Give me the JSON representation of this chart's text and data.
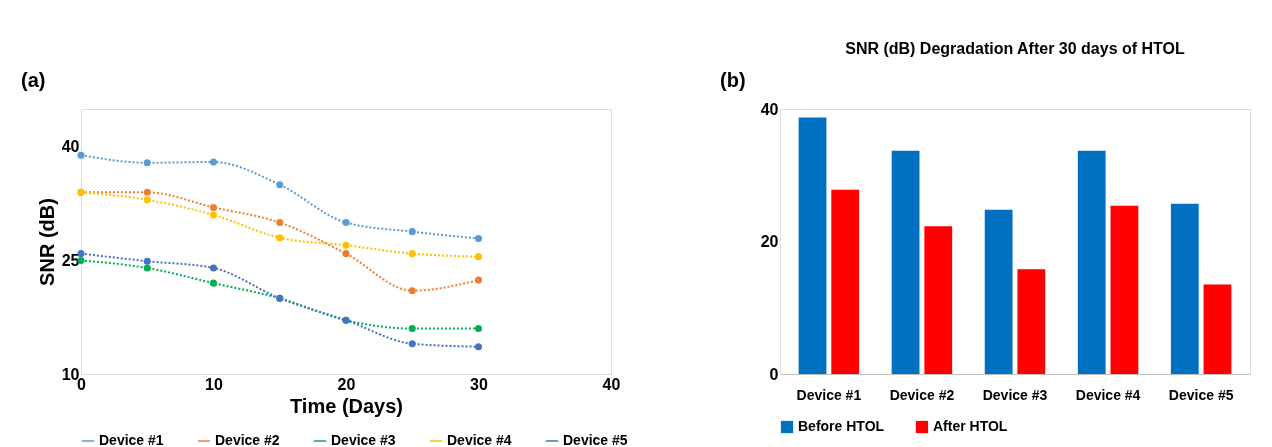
{
  "chart_data": [
    {
      "type": "line",
      "annotations": [
        "(a)"
      ],
      "xlabel": "Time (Days)",
      "ylabel": "SNR (dB)",
      "x": [
        0,
        5,
        10,
        15,
        20,
        25,
        30
      ],
      "xlim": [
        0,
        40
      ],
      "xticks": [
        0,
        10,
        20,
        30,
        40
      ],
      "ylim": [
        10,
        45
      ],
      "yticks": [
        10,
        25,
        40
      ],
      "grid": false,
      "legend": "bottom",
      "marker": "circle",
      "line_style": "dotted",
      "series": [
        {
          "name": "Device #1",
          "color": "#5b9bd5",
          "values": [
            38.9,
            37.9,
            38,
            35,
            30,
            28.8,
            27.9
          ]
        },
        {
          "name": "Device #2",
          "color": "#ed7d31",
          "values": [
            34,
            34,
            32,
            30,
            25.9,
            21,
            22.4
          ]
        },
        {
          "name": "Device #3",
          "color": "#00b050",
          "values": [
            25,
            24,
            22,
            20,
            17.1,
            16,
            16
          ]
        },
        {
          "name": "Device #4",
          "color": "#ffc000",
          "values": [
            34,
            33,
            31,
            28,
            27,
            25.9,
            25.5
          ]
        },
        {
          "name": "Device #5",
          "color": "#4472c4",
          "values": [
            25.9,
            24.9,
            24,
            20,
            17.1,
            14,
            13.6
          ]
        }
      ]
    },
    {
      "type": "bar",
      "title": "SNR (dB) Degradation After 30 days of HTOL",
      "annotations": [
        "(b)"
      ],
      "categories": [
        "Device #1",
        "Device #2",
        "Device #3",
        "Device #4",
        "Device #5"
      ],
      "ylim": [
        0,
        40
      ],
      "yticks": [
        0,
        20,
        40
      ],
      "grid": false,
      "legend": "bottom",
      "series": [
        {
          "name": "Before HTOL",
          "color": "#0070c0",
          "values": [
            38.7,
            33.7,
            24.8,
            33.7,
            25.7
          ]
        },
        {
          "name": "After HTOL",
          "color": "#ff0000",
          "values": [
            27.8,
            22.3,
            15.8,
            25.4,
            13.5
          ]
        }
      ]
    }
  ]
}
